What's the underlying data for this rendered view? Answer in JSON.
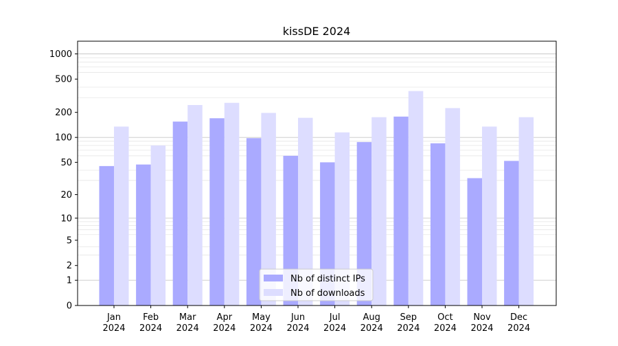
{
  "chart_data": {
    "type": "bar",
    "title": "kissDE 2024",
    "xlabel": "",
    "ylabel": "",
    "yscale": "symlog",
    "ylim": [
      0,
      1400
    ],
    "grid": "horizontal",
    "legend_position": "bottom-center",
    "categories": [
      [
        "Jan",
        "2024"
      ],
      [
        "Feb",
        "2024"
      ],
      [
        "Mar",
        "2024"
      ],
      [
        "Apr",
        "2024"
      ],
      [
        "May",
        "2024"
      ],
      [
        "Jun",
        "2024"
      ],
      [
        "Jul",
        "2024"
      ],
      [
        "Aug",
        "2024"
      ],
      [
        "Sep",
        "2024"
      ],
      [
        "Oct",
        "2024"
      ],
      [
        "Nov",
        "2024"
      ],
      [
        "Dec",
        "2024"
      ]
    ],
    "y_ticks": [
      0,
      1,
      2,
      5,
      10,
      20,
      50,
      100,
      200,
      500,
      1000
    ],
    "series": [
      {
        "name": "Nb of distinct IPs",
        "color": "#aaaaff",
        "values": [
          45,
          47,
          155,
          170,
          98,
          60,
          50,
          88,
          178,
          85,
          32,
          52
        ]
      },
      {
        "name": "Nb of downloads",
        "color": "#ddddff",
        "values": [
          135,
          80,
          245,
          260,
          197,
          172,
          115,
          175,
          360,
          225,
          135,
          175
        ]
      }
    ]
  }
}
